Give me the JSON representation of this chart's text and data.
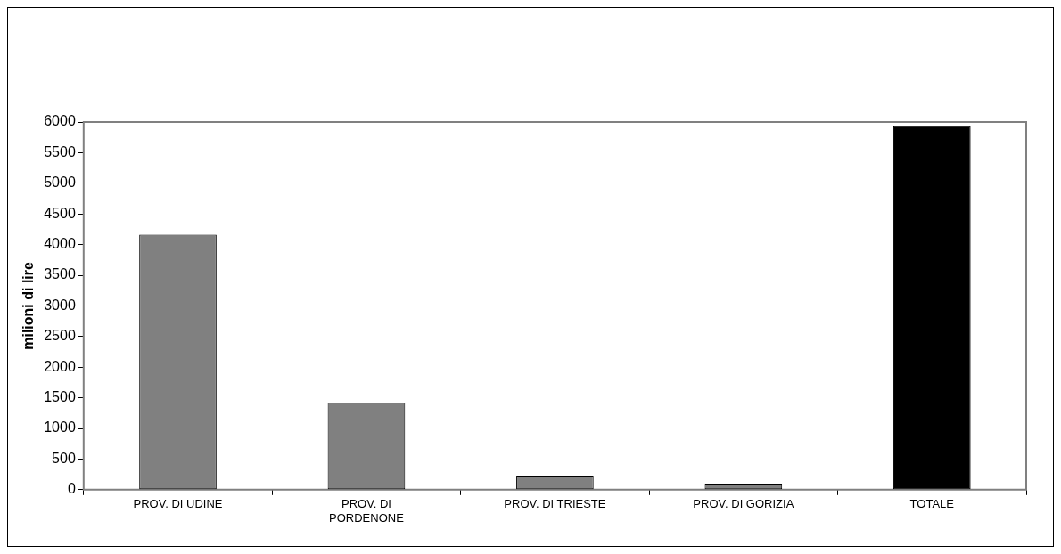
{
  "chart_data": {
    "type": "bar",
    "ylabel": "milioni di lire",
    "categories": [
      "PROV. DI UDINE",
      "PROV. DI PORDENONE",
      "PROV. DI TRIESTE",
      "PROV. DI GORIZIA",
      "TOTALE"
    ],
    "values": [
      4160,
      1420,
      230,
      100,
      5930
    ],
    "colors": [
      "#808080",
      "#808080",
      "#808080",
      "#808080",
      "#000000"
    ],
    "ylim": [
      0,
      6000
    ],
    "yticks": [
      0,
      500,
      1000,
      1500,
      2000,
      2500,
      3000,
      3500,
      4000,
      4500,
      5000,
      5500,
      6000
    ],
    "grid": false,
    "legend": false
  }
}
